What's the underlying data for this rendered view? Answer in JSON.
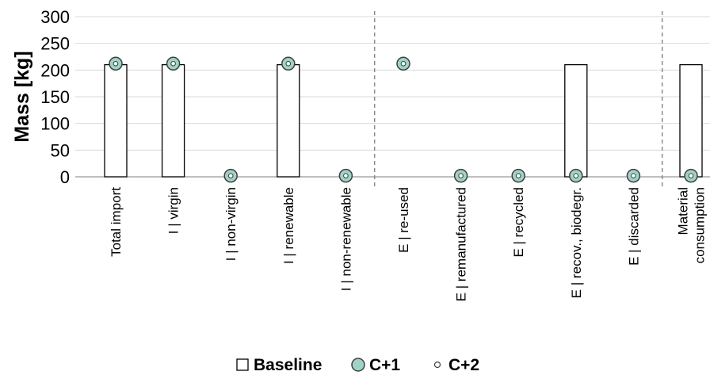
{
  "chart_data": {
    "type": "bar",
    "title": "",
    "xlabel": "",
    "ylabel": "Mass [kg]",
    "ylim": [
      0,
      300
    ],
    "yticks": [
      0,
      50,
      100,
      150,
      200,
      250,
      300
    ],
    "grid": true,
    "legend_position": "bottom",
    "categories": [
      [
        "Total import"
      ],
      [
        "I | virgin"
      ],
      [
        "I | non-virgin"
      ],
      [
        "I | renewable"
      ],
      [
        "I | non-renewable"
      ],
      [
        "E | re-used"
      ],
      [
        "E | remanufactured"
      ],
      [
        "E | recycled"
      ],
      [
        "E | recov., biodegr."
      ],
      [
        "E | discarded"
      ],
      [
        "Material",
        "consumption"
      ]
    ],
    "separators_after_index": [
      4,
      9
    ],
    "series": [
      {
        "name": "Baseline",
        "marker": "bar",
        "color": "#ffffff",
        "values": [
          210,
          210,
          0,
          210,
          0,
          0,
          0,
          0,
          210,
          0,
          210
        ]
      },
      {
        "name": "C+1",
        "marker": "circle",
        "color": "#9fd3c7",
        "values": [
          212,
          212,
          2,
          212,
          2,
          212,
          2,
          2,
          2,
          2,
          2
        ]
      },
      {
        "name": "C+2",
        "marker": "small-circle",
        "color": "#ffffff",
        "values": [
          212,
          212,
          2,
          212,
          2,
          212,
          2,
          2,
          2,
          2,
          2
        ]
      }
    ]
  }
}
